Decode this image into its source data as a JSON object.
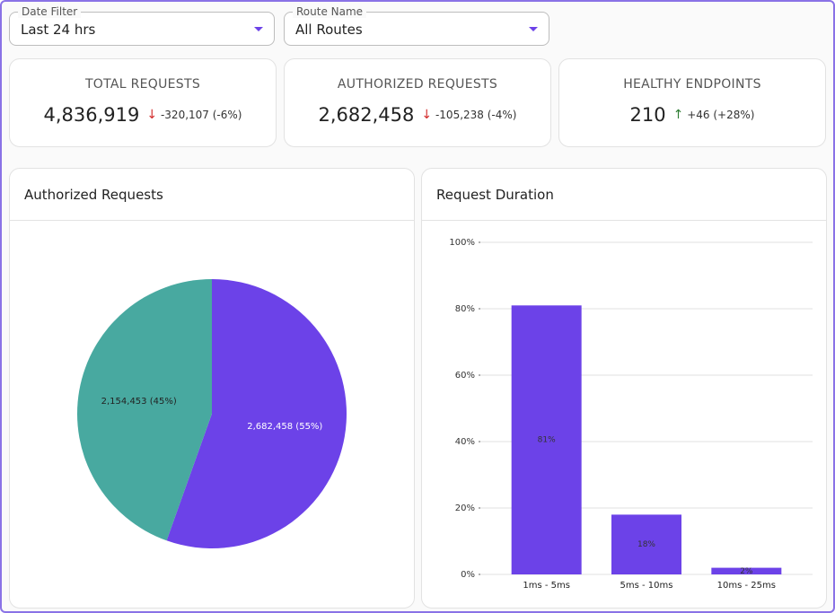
{
  "filters": [
    {
      "label": "Date Filter",
      "value": "Last 24 hrs"
    },
    {
      "label": "Route Name",
      "value": "All Routes"
    }
  ],
  "kpis": [
    {
      "title": "TOTAL REQUESTS",
      "value": "4,836,919",
      "delta": "-320,107 (-6%)"
    },
    {
      "title": "AUTHORIZED REQUESTS",
      "value": "2,682,458",
      "delta": "-105,238 (-4%)"
    },
    {
      "title": "HEALTHY ENDPOINTS",
      "value": "210",
      "delta": "+46 (+28%)"
    }
  ],
  "chart_data": [
    {
      "type": "pie",
      "title": "Authorized Requests",
      "categories": [
        null,
        null
      ],
      "values": [
        2682458,
        2154453
      ],
      "value_labels": [
        "2,682,458 (55%)",
        "2,154,453 (45%)"
      ],
      "colors": [
        "#6c42e8",
        "#48a9a0"
      ]
    },
    {
      "type": "bar",
      "title": "Request Duration",
      "categories": [
        "1ms - 5ms",
        "5ms - 10ms",
        "10ms - 25ms"
      ],
      "values": [
        81,
        18,
        2
      ],
      "value_labels": [
        "81%",
        "18%",
        "2%"
      ],
      "color": "#6c42e8",
      "ylim": [
        0,
        100
      ],
      "yticks": [
        {
          "value": 0,
          "label": "0%"
        },
        {
          "value": 20,
          "label": "20%"
        },
        {
          "value": 40,
          "label": "40%"
        },
        {
          "value": 60,
          "label": "60%"
        },
        {
          "value": 80,
          "label": "80%"
        },
        {
          "value": 100,
          "label": "100%"
        }
      ],
      "grid": true
    }
  ]
}
